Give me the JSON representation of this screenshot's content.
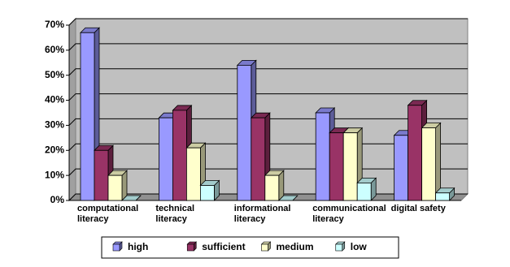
{
  "chart_data": {
    "type": "bar3d",
    "categories": [
      "computational literacy",
      "technical literacy",
      "informational literacy",
      "communicational literacy",
      "digital safety"
    ],
    "series": [
      {
        "name": "high",
        "color": "#9999ff",
        "values": [
          67,
          33,
          54,
          35,
          26
        ]
      },
      {
        "name": "sufficient",
        "color": "#993366",
        "values": [
          20,
          36,
          33,
          27,
          38
        ]
      },
      {
        "name": "medium",
        "color": "#ffffcc",
        "values": [
          10,
          21,
          10,
          27,
          29
        ]
      },
      {
        "name": "low",
        "color": "#ccffff",
        "values": [
          0,
          6,
          0,
          7,
          3
        ]
      }
    ],
    "ylim": [
      0,
      70
    ],
    "yticks": [
      {
        "value": 0,
        "label": "0%"
      },
      {
        "value": 10,
        "label": "10%"
      },
      {
        "value": 20,
        "label": "20%"
      },
      {
        "value": 30,
        "label": "30%"
      },
      {
        "value": 40,
        "label": "40%"
      },
      {
        "value": 50,
        "label": "50%"
      },
      {
        "value": 60,
        "label": "60%"
      },
      {
        "value": 70,
        "label": "70%"
      }
    ],
    "grid": true,
    "legend": "bottom"
  }
}
